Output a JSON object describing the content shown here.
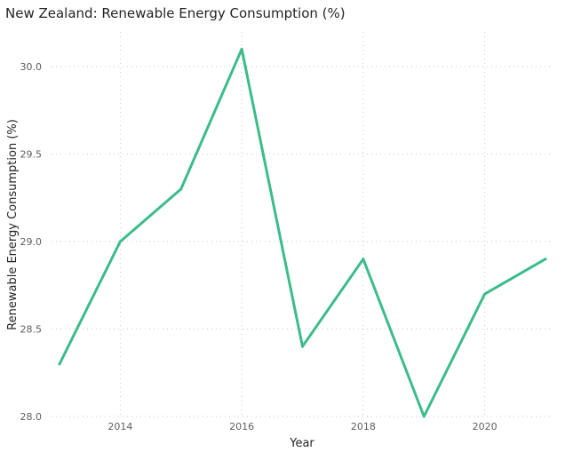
{
  "chart_data": {
    "type": "line",
    "title": "New Zealand: Renewable Energy Consumption (%)",
    "xlabel": "Year",
    "ylabel": "Renewable Energy Consumption (%)",
    "xlim": [
      2013,
      2021
    ],
    "ylim": [
      28.0,
      30.2
    ],
    "x_ticks": [
      "2014",
      "2016",
      "2018",
      "2020"
    ],
    "y_ticks": [
      "28.0",
      "28.5",
      "29.0",
      "29.5",
      "30.0"
    ],
    "grid": true,
    "line_color": "#3bbc8a",
    "series": [
      {
        "x": [
          2013,
          2014,
          2015,
          2016,
          2017,
          2018,
          2019,
          2020,
          2021
        ],
        "values": [
          28.3,
          29.0,
          29.3,
          30.1,
          28.4,
          28.9,
          28.0,
          28.7,
          28.9
        ]
      }
    ]
  }
}
